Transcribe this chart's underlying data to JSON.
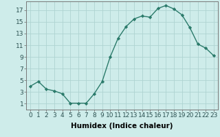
{
  "x": [
    0,
    1,
    2,
    3,
    4,
    5,
    6,
    7,
    8,
    9,
    10,
    11,
    12,
    13,
    14,
    15,
    16,
    17,
    18,
    19,
    20,
    21,
    22,
    23
  ],
  "y": [
    4.0,
    4.8,
    3.5,
    3.2,
    2.7,
    1.1,
    1.1,
    1.1,
    2.7,
    4.8,
    9.0,
    12.2,
    14.2,
    15.5,
    16.0,
    15.8,
    17.3,
    17.8,
    17.2,
    16.2,
    14.0,
    11.2,
    10.5,
    9.2
  ],
  "line_color": "#2a7a6a",
  "bg_color": "#ceecea",
  "grid_color": "#aed4d1",
  "xlabel": "Humidex (Indice chaleur)",
  "xlim": [
    -0.5,
    23.5
  ],
  "ylim": [
    0.0,
    18.5
  ],
  "yticks": [
    1,
    3,
    5,
    7,
    9,
    11,
    13,
    15,
    17
  ],
  "xticks": [
    0,
    1,
    2,
    3,
    4,
    5,
    6,
    7,
    8,
    9,
    10,
    11,
    12,
    13,
    14,
    15,
    16,
    17,
    18,
    19,
    20,
    21,
    22,
    23
  ],
  "xtick_labels": [
    "0",
    "1",
    "2",
    "3",
    "4",
    "5",
    "6",
    "7",
    "8",
    "9",
    "10",
    "11",
    "12",
    "13",
    "14",
    "15",
    "16",
    "17",
    "18",
    "19",
    "20",
    "21",
    "22",
    "23"
  ],
  "marker": "D",
  "marker_size": 2.2,
  "line_width": 1.0,
  "xlabel_fontsize": 7.5,
  "tick_fontsize": 6.5
}
